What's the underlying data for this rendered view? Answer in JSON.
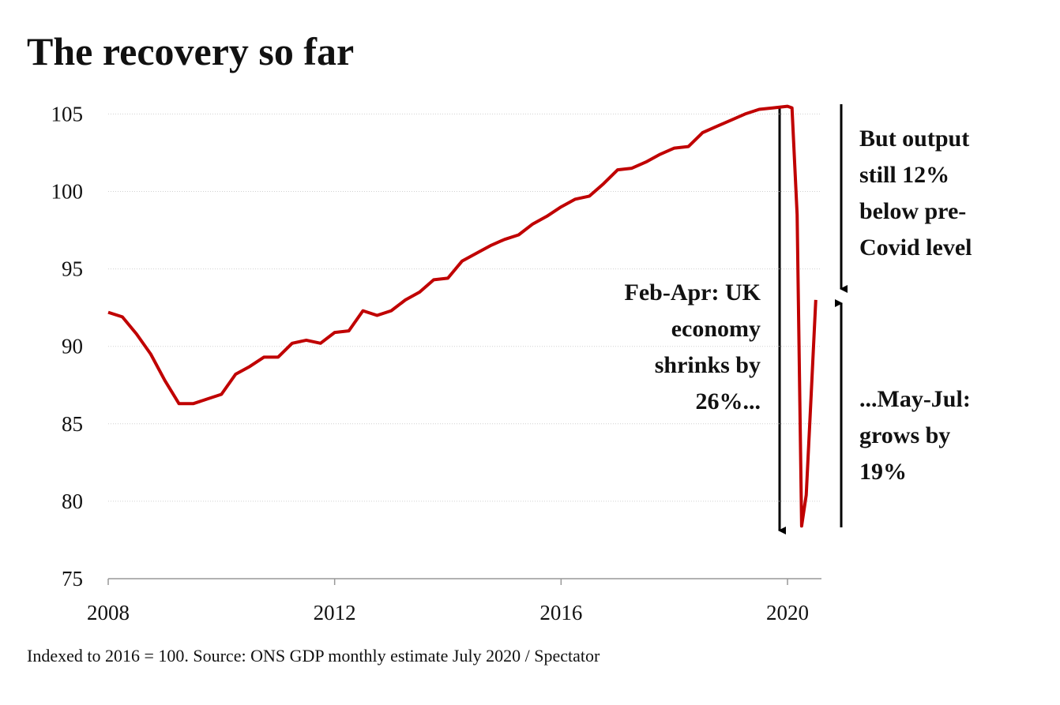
{
  "chart_data": {
    "type": "line",
    "title": "The recovery so far",
    "source": "Indexed to 2016 = 100. Source: ONS GDP monthly estimate July 2020 / Spectator",
    "x": [
      2008,
      2008.25,
      2008.5,
      2008.75,
      2009,
      2009.25,
      2009.5,
      2009.75,
      2010,
      2010.25,
      2010.5,
      2010.75,
      2011,
      2011.25,
      2011.5,
      2011.75,
      2012,
      2012.25,
      2012.5,
      2012.75,
      2013,
      2013.25,
      2013.5,
      2013.75,
      2014,
      2014.25,
      2014.5,
      2014.75,
      2015,
      2015.25,
      2015.5,
      2015.75,
      2016,
      2016.25,
      2016.5,
      2016.75,
      2017,
      2017.25,
      2017.5,
      2017.75,
      2018,
      2018.25,
      2018.5,
      2018.75,
      2019,
      2019.25,
      2019.5,
      2019.75,
      2020,
      2020.08,
      2020.17,
      2020.25,
      2020.33,
      2020.42,
      2020.5
    ],
    "series": [
      {
        "name": "GDP index",
        "color": "#c00000",
        "values": [
          92.2,
          91.9,
          90.8,
          89.5,
          87.8,
          86.3,
          86.3,
          86.6,
          86.9,
          88.2,
          88.7,
          89.3,
          89.3,
          90.2,
          90.4,
          90.2,
          90.9,
          91.0,
          92.3,
          92.0,
          92.3,
          93.0,
          93.5,
          94.3,
          94.4,
          95.5,
          96.0,
          96.5,
          96.9,
          97.2,
          97.9,
          98.4,
          99.0,
          99.5,
          99.7,
          100.5,
          101.4,
          101.5,
          101.9,
          102.4,
          102.8,
          102.9,
          103.8,
          104.2,
          104.6,
          105.0,
          105.3,
          105.4,
          105.5,
          105.4,
          98.5,
          78.4,
          80.4,
          87.0,
          93.0
        ]
      }
    ],
    "xlim": [
      2008,
      2020.6
    ],
    "xticks": [
      2008,
      2012,
      2016,
      2020
    ],
    "ylim": [
      75,
      106.5
    ],
    "yticks": [
      75,
      80,
      85,
      90,
      95,
      100,
      105
    ],
    "grid": true,
    "annotations": [
      [
        "Feb-Apr: UK",
        "economy",
        "shrinks by",
        "26%..."
      ],
      [
        "But output",
        "still 12%",
        "below pre-",
        "Covid level"
      ],
      [
        "...May-Jul:",
        "grows by",
        "19%"
      ]
    ]
  }
}
